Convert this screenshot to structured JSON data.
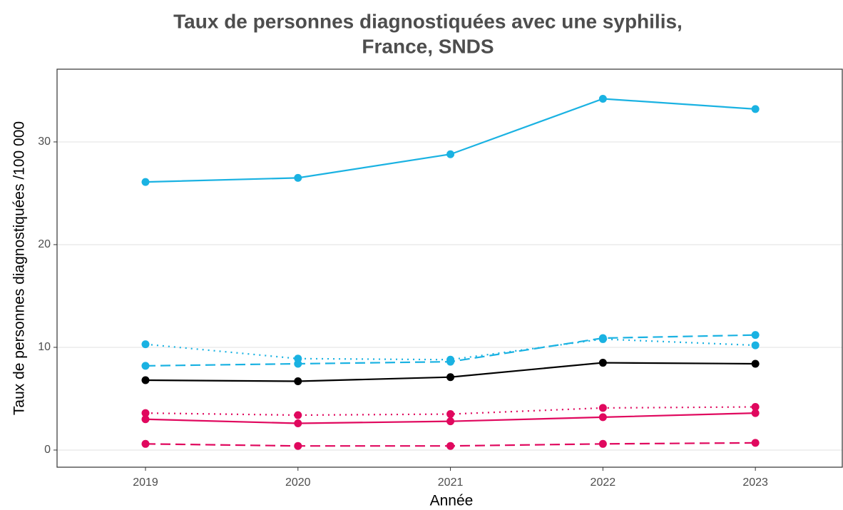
{
  "chart_data": {
    "type": "line",
    "title": [
      "Taux de personnes diagnostiquées avec une syphilis,",
      "France, SNDS"
    ],
    "x_label": "Année",
    "y_label": "Taux de personnes diagnostiquées /100 000",
    "x": [
      2019,
      2020,
      2021,
      2022,
      2023
    ],
    "xlim": [
      2018.42,
      2023.57
    ],
    "xticks": [
      2019,
      2020,
      2021,
      2022,
      2023
    ],
    "ylim": [
      -1.67,
      37.08
    ],
    "yticks": [
      0,
      10,
      20,
      30
    ],
    "grid": true,
    "series": [
      {
        "color": "#1ab2e2",
        "dash": "solid",
        "values": [
          26.1,
          26.5,
          28.8,
          34.2,
          33.2
        ]
      },
      {
        "color": "#1ab2e2",
        "dash": "dotted",
        "values": [
          10.3,
          8.9,
          8.8,
          10.8,
          10.2
        ]
      },
      {
        "color": "#1ab2e2",
        "dash": "dashed",
        "values": [
          8.2,
          8.4,
          8.6,
          10.9,
          11.2
        ]
      },
      {
        "color": "#000000",
        "dash": "solid",
        "values": [
          6.8,
          6.7,
          7.1,
          8.5,
          8.4
        ]
      },
      {
        "color": "#e0085e",
        "dash": "dotted",
        "values": [
          3.6,
          3.4,
          3.5,
          4.1,
          4.2
        ]
      },
      {
        "color": "#e0085e",
        "dash": "solid",
        "values": [
          3.0,
          2.6,
          2.8,
          3.2,
          3.6
        ]
      },
      {
        "color": "#e0085e",
        "dash": "dashed",
        "values": [
          0.6,
          0.4,
          0.4,
          0.6,
          0.7
        ]
      }
    ]
  }
}
